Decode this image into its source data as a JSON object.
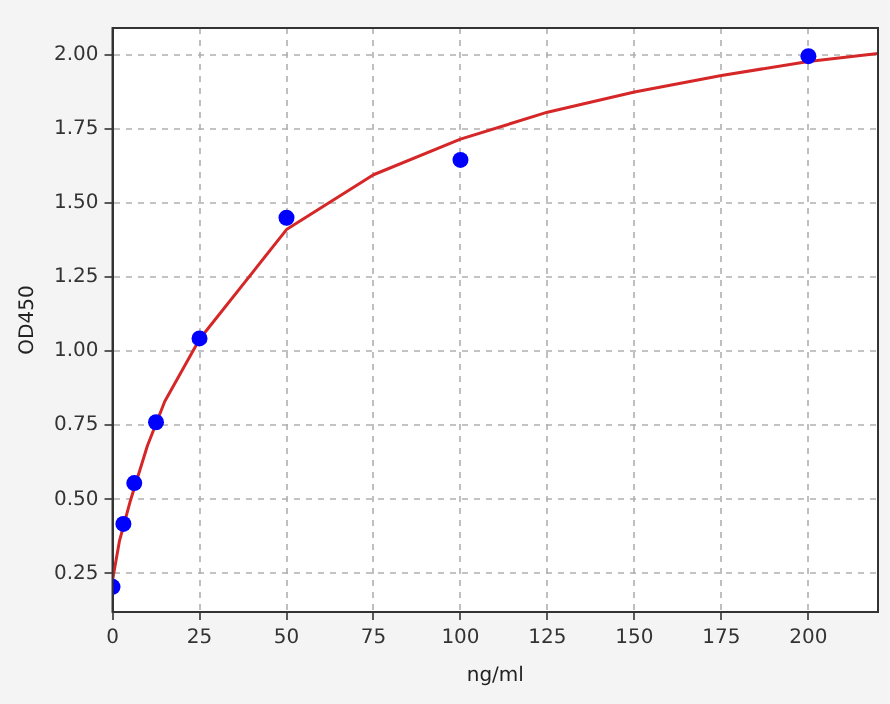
{
  "chart_data": {
    "type": "scatter",
    "xlabel": "ng/ml",
    "ylabel": "OD450",
    "xlim": [
      0,
      220
    ],
    "ylim": [
      0.12,
      2.09
    ],
    "xticks": [
      0,
      25,
      50,
      75,
      100,
      125,
      150,
      175,
      200
    ],
    "yticks": [
      0.25,
      {
        "value": 0.5,
        "label": "0.50"
      },
      0.75,
      {
        "value": 1,
        "label": "1.00"
      },
      1.25,
      {
        "value": 1.5,
        "label": "1.50"
      },
      1.75,
      {
        "value": 2,
        "label": "2.00"
      }
    ],
    "grid": true,
    "legend": false,
    "series": [
      {
        "color": "#0000ff",
        "marker": "circle",
        "x": [
          0,
          3.125,
          6.25,
          12.5,
          25,
          50,
          100,
          200
        ],
        "values": [
          0.205,
          0.417,
          0.555,
          0.76,
          1.043,
          1.45,
          1.645,
          1.995
        ]
      },
      {
        "type": "line",
        "color": "#d62728",
        "marker": "none",
        "line_style": "solid",
        "x": [
          0,
          2,
          5,
          10,
          15,
          25,
          50,
          75,
          100,
          125,
          150,
          175,
          200,
          220
        ],
        "values": [
          0.227,
          0.36,
          0.49,
          0.68,
          0.83,
          1.04,
          1.41,
          1.595,
          1.715,
          1.806,
          1.874,
          1.93,
          1.977,
          2.004
        ]
      }
    ]
  }
}
